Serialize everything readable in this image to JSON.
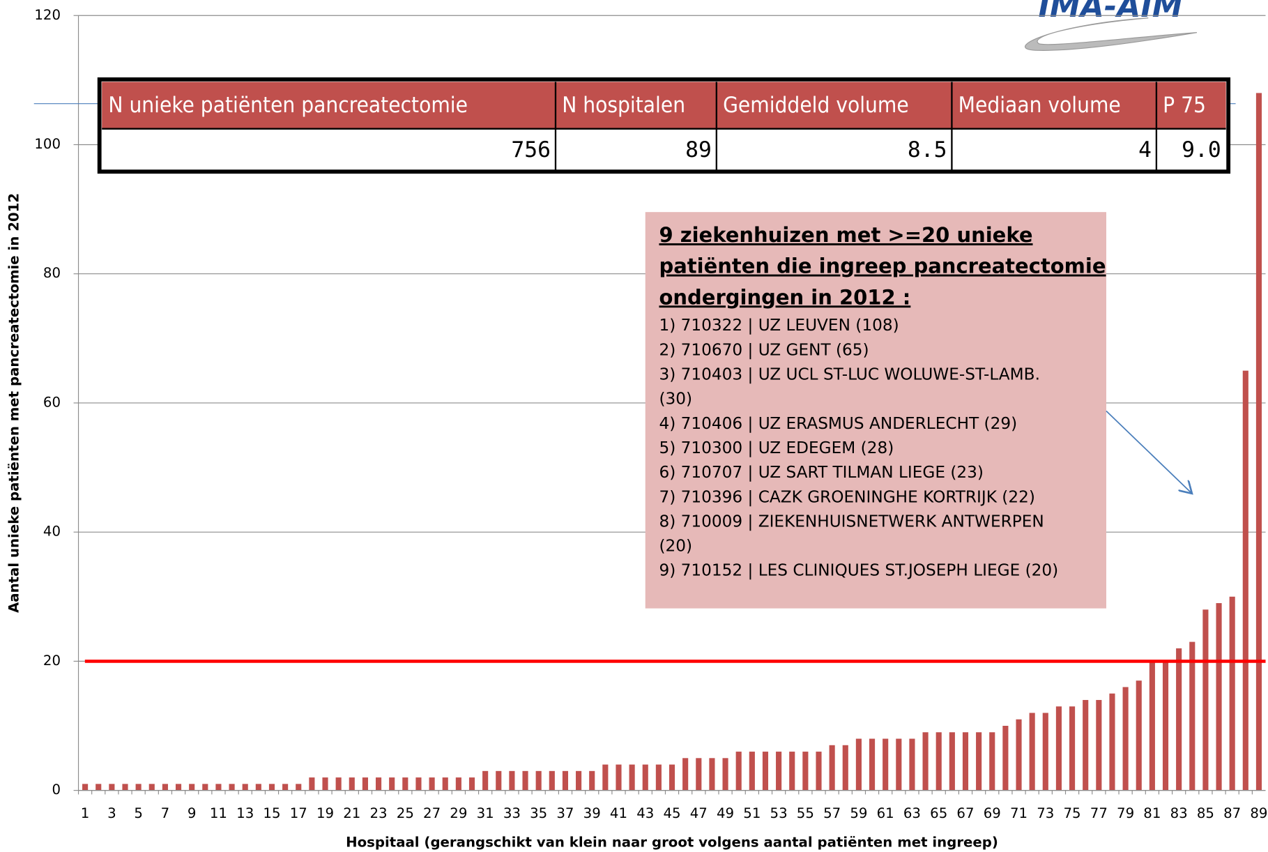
{
  "logo": "IMA-AIM",
  "chart_data": {
    "type": "bar",
    "x_label": "Hospitaal (gerangschikt van klein naar groot volgens aantal patiënten met ingreep)",
    "y_label": "Aantal unieke patiënten met pancreatectomie in 2012",
    "categories": [
      "1",
      null,
      "3",
      null,
      "5",
      null,
      "7",
      null,
      "9",
      null,
      "11",
      null,
      "13",
      null,
      "15",
      null,
      "17",
      null,
      "19",
      null,
      "21",
      null,
      "23",
      null,
      "25",
      null,
      "27",
      null,
      "29",
      null,
      "31",
      null,
      "33",
      null,
      "35",
      null,
      "37",
      null,
      "39",
      null,
      "41",
      null,
      "43",
      null,
      "45",
      null,
      "47",
      null,
      "49",
      null,
      "51",
      null,
      "53",
      null,
      "55",
      null,
      "57",
      null,
      "59",
      null,
      "61",
      null,
      "63",
      null,
      "65",
      null,
      "67",
      null,
      "69",
      null,
      "71",
      null,
      "73",
      null,
      "75",
      null,
      "77",
      null,
      "79",
      null,
      "81",
      null,
      "83",
      null,
      "85",
      null,
      "87",
      null,
      "89"
    ],
    "values": [
      1,
      1,
      1,
      1,
      1,
      1,
      1,
      1,
      1,
      1,
      1,
      1,
      1,
      1,
      1,
      1,
      1,
      2,
      2,
      2,
      2,
      2,
      2,
      2,
      2,
      2,
      2,
      2,
      2,
      2,
      3,
      3,
      3,
      3,
      3,
      3,
      3,
      3,
      3,
      4,
      4,
      4,
      4,
      4,
      4,
      5,
      5,
      5,
      5,
      6,
      6,
      6,
      6,
      6,
      6,
      6,
      7,
      7,
      8,
      8,
      8,
      8,
      8,
      9,
      9,
      9,
      9,
      9,
      9,
      10,
      11,
      12,
      12,
      13,
      13,
      14,
      14,
      15,
      16,
      17,
      20,
      20,
      22,
      23,
      28,
      29,
      30,
      65,
      108
    ],
    "color": "#c0504d",
    "ylim": [
      0,
      120
    ],
    "yticks": [
      0,
      20,
      40,
      60,
      80,
      100,
      120
    ],
    "grid": true,
    "reference_line": {
      "value": 20,
      "color": "#ff0000"
    }
  },
  "table": {
    "header": [
      "N unieke patiënten pancreatectomie",
      "N hospitalen",
      "Gemiddeld volume",
      "Mediaan volume",
      "P 75"
    ],
    "row": [
      "756",
      "89",
      "8.5",
      "4",
      "9.0"
    ]
  },
  "annotation": {
    "title": [
      "9 ziekenhuizen met >=20 unieke",
      "patiënten die ingreep pancreatectomie",
      "ondergingen in 2012 :"
    ],
    "lines": [
      "1) 710322 | UZ LEUVEN (108)",
      "2) 710670 | UZ GENT (65)",
      "3) 710403 | UZ UCL ST-LUC WOLUWE-ST-LAMB.",
      "(30)",
      "4) 710406 | UZ ERASMUS ANDERLECHT (29)",
      "5) 710300 | UZ EDEGEM (28)",
      "6) 710707 | UZ SART TILMAN LIEGE (23)",
      "7) 710396 | CAZK GROENINGHE KORTRIJK (22)",
      "8) 710009 | ZIEKENHUISNETWERK ANTWERPEN",
      "(20)",
      "9) 710152 | LES CLINIQUES ST.JOSEPH LIEGE (20)"
    ]
  }
}
